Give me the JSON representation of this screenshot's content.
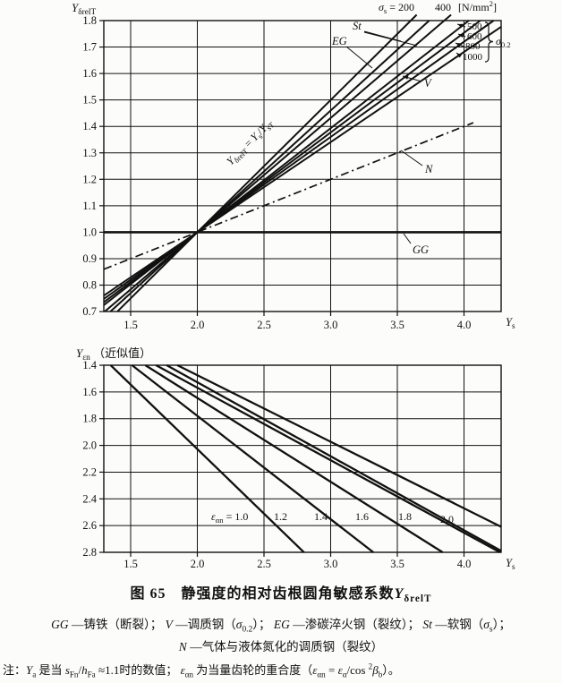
{
  "figure": {
    "number": "图 65",
    "caption": [
      {
        "t": "图 65　静强度的相对齿根圆角敏感系数"
      },
      {
        "t": "Y",
        "i": 1
      },
      {
        "t": "δrelT",
        "sub": 1
      }
    ],
    "legend_line1": [
      {
        "t": "GG",
        "i": 1
      },
      {
        "t": " —铸铁（断裂）； "
      },
      {
        "t": "V",
        "i": 1
      },
      {
        "t": " —调质钢（"
      },
      {
        "t": "σ",
        "i": 1
      },
      {
        "t": "0.2",
        "sub": 1
      },
      {
        "t": "）； "
      },
      {
        "t": "EG",
        "i": 1
      },
      {
        "t": " —渗碳淬火钢（裂纹）； "
      },
      {
        "t": "St",
        "i": 1
      },
      {
        "t": " —软钢（"
      },
      {
        "t": "σ",
        "i": 1
      },
      {
        "t": "s",
        "sub": 1
      },
      {
        "t": "）；"
      }
    ],
    "legend_line2": [
      {
        "t": "N",
        "i": 1
      },
      {
        "t": " —气体与液体氮化的调质钢（裂纹）"
      }
    ],
    "note": [
      {
        "t": "注："
      },
      {
        "t": "Y",
        "i": 1
      },
      {
        "t": "a",
        "sub": 1
      },
      {
        "t": " 是当 "
      },
      {
        "t": "s",
        "i": 1
      },
      {
        "t": "Fn",
        "sub": 1
      },
      {
        "t": "/"
      },
      {
        "t": "h",
        "i": 1
      },
      {
        "t": "Fa",
        "sub": 1
      },
      {
        "t": " ≈1.1时的数值； "
      },
      {
        "t": "ε",
        "i": 1
      },
      {
        "t": "αn",
        "sub": 1
      },
      {
        "t": " 为当量齿轮的重合度（"
      },
      {
        "t": "ε",
        "i": 1
      },
      {
        "t": "αn",
        "sub": 1
      },
      {
        "t": " = "
      },
      {
        "t": "ε",
        "i": 1
      },
      {
        "t": "α",
        "sub": 1
      },
      {
        "t": "/cos "
      },
      {
        "t": "2",
        "sup": 1
      },
      {
        "t": "β",
        "i": 1
      },
      {
        "t": "b",
        "sub": 1
      },
      {
        "t": "）。"
      }
    ]
  },
  "chart_data": [
    {
      "id": "top",
      "type": "line",
      "title": "静强度的相对齿根圆角敏感系数",
      "xlabel": "Ys",
      "ylabel": "YδrelT",
      "xlim": [
        1.3,
        4.28
      ],
      "ylim": [
        0.7,
        1.8
      ],
      "grid": true,
      "x_ticks": [
        "1.5",
        "2.0",
        "2.5",
        "3.0",
        "3.5",
        "4.0"
      ],
      "y_ticks": [
        "1.8",
        "1.7",
        "1.6",
        "1.5",
        "1.4",
        "1.3",
        "1.2",
        "1.1",
        "1.0",
        "0.9",
        "0.8",
        "0.7"
      ],
      "pivot_point": [
        2.0,
        1.0
      ],
      "series": [
        {
          "name": "St sigma_s=200 (YδrelT=Ys/YsT)",
          "points": [
            [
              1.4,
              0.7
            ],
            [
              3.645,
              1.822
            ]
          ],
          "style": "solid"
        },
        {
          "name": "EG",
          "points": [
            [
              1.348,
              0.7
            ],
            [
              3.739,
              1.8
            ]
          ],
          "style": "solid"
        },
        {
          "name": "St sigma_s=400",
          "points": [
            [
              1.306,
              0.7
            ],
            [
              3.903,
              1.822
            ]
          ],
          "style": "solid"
        },
        {
          "name": "V sigma_0.2=500",
          "points": [
            [
              1.3,
              0.725
            ],
            [
              4.036,
              1.8
            ]
          ],
          "style": "solid"
        },
        {
          "name": "V sigma_0.2=600",
          "points": [
            [
              1.3,
              0.736
            ],
            [
              4.122,
              1.8
            ]
          ],
          "style": "solid"
        },
        {
          "name": "V sigma_0.2=800",
          "points": [
            [
              1.3,
              0.748
            ],
            [
              4.222,
              1.8
            ]
          ],
          "style": "solid"
        },
        {
          "name": "V sigma_0.2=1000",
          "points": [
            [
              1.3,
              0.761
            ],
            [
              4.28,
              1.777
            ]
          ],
          "style": "solid"
        },
        {
          "name": "N",
          "points": [
            [
              1.3,
              0.86
            ],
            [
              4.07,
              1.414
            ]
          ],
          "style": "dashdot"
        },
        {
          "name": "GG",
          "points": [
            [
              1.3,
              1.0
            ],
            [
              4.28,
              1.0
            ]
          ],
          "style": "bold"
        }
      ],
      "annotations": {
        "axis_title": [
          {
            "t": "Y",
            "i": 1
          },
          {
            "t": "δrelT",
            "sub": 1
          }
        ],
        "sigma_s_200": [
          {
            "t": "σ",
            "i": 1
          },
          {
            "t": "s",
            "sub": 1
          },
          {
            "t": " = 200"
          }
        ],
        "v400": [
          {
            "t": "400"
          }
        ],
        "unit": [
          {
            "t": "[N/mm"
          },
          {
            "t": "2",
            "sup": 1
          },
          {
            "t": "]"
          }
        ],
        "st": [
          {
            "t": "St",
            "i": 1
          }
        ],
        "eg": [
          {
            "t": "EG",
            "i": 1
          }
        ],
        "v": [
          {
            "t": "V",
            "i": 1
          }
        ],
        "n": [
          {
            "t": "N",
            "i": 1
          }
        ],
        "gg": [
          {
            "t": "GG",
            "i": 1
          }
        ],
        "v500": [
          {
            "t": "500"
          }
        ],
        "v600": [
          {
            "t": "600"
          }
        ],
        "v800": [
          {
            "t": "800"
          }
        ],
        "v1000": [
          {
            "t": "1000"
          }
        ],
        "sigma02": [
          {
            "t": "σ",
            "i": 1
          },
          {
            "t": "0.2",
            "sub": 1
          }
        ],
        "formula": [
          {
            "t": "Y",
            "i": 1
          },
          {
            "t": "δrelT",
            "sub": 1
          },
          {
            "t": " = "
          },
          {
            "t": "Y",
            "i": 1
          },
          {
            "t": "s",
            "sub": 1
          },
          {
            "t": "/"
          },
          {
            "t": "Y",
            "i": 1
          },
          {
            "t": "sT",
            "sub": 1
          }
        ],
        "xlabel": [
          {
            "t": "Y",
            "i": 1
          },
          {
            "t": "s",
            "sub": 1
          }
        ]
      }
    },
    {
      "id": "bottom",
      "type": "line",
      "title": "",
      "xlabel": "Ys",
      "ylabel": "Yεn（近似值）",
      "xlim": [
        1.3,
        4.28
      ],
      "ylim": [
        1.4,
        2.8
      ],
      "y_inverted": true,
      "grid": true,
      "x_ticks": [
        "1.5",
        "2.0",
        "2.5",
        "3.0",
        "3.5",
        "4.0"
      ],
      "y_ticks": [
        "1.4",
        "1.6",
        "1.8",
        "2.0",
        "2.2",
        "2.4",
        "2.6",
        "2.8"
      ],
      "series": [
        {
          "name": "εαn=1.0",
          "points": [
            [
              1.35,
              1.4
            ],
            [
              2.8,
              2.8
            ]
          ],
          "style": "solid"
        },
        {
          "name": "εαn=1.2",
          "points": [
            [
              1.51,
              1.4
            ],
            [
              3.32,
              2.8
            ]
          ],
          "style": "solid"
        },
        {
          "name": "εαn=1.4",
          "points": [
            [
              1.61,
              1.4
            ],
            [
              3.84,
              2.8
            ]
          ],
          "style": "solid"
        },
        {
          "name": "εαn=1.6",
          "points": [
            [
              1.69,
              1.4
            ],
            [
              4.27,
              2.8
            ]
          ],
          "style": "solid"
        },
        {
          "name": "εαn=1.8",
          "points": [
            [
              1.77,
              1.4
            ],
            [
              4.28,
              2.79
            ]
          ],
          "style": "solid"
        },
        {
          "name": "εαn=2.0",
          "points": [
            [
              1.85,
              1.4
            ],
            [
              4.28,
              2.61
            ]
          ],
          "style": "solid"
        }
      ],
      "annotations": {
        "axis_title": [
          {
            "t": "Y",
            "i": 1
          },
          {
            "t": "εn",
            "sub": 1
          },
          {
            "t": " （近似值）"
          }
        ],
        "eps10": [
          {
            "t": "ε",
            "i": 1
          },
          {
            "t": "αn",
            "sub": 1
          },
          {
            "t": " = 1.0"
          }
        ],
        "eps12": [
          {
            "t": "1.2"
          }
        ],
        "eps14": [
          {
            "t": "1.4"
          }
        ],
        "eps16": [
          {
            "t": "1.6"
          }
        ],
        "eps18": [
          {
            "t": "1.8"
          }
        ],
        "eps20": [
          {
            "t": "2.0"
          }
        ],
        "xlabel": [
          {
            "t": "Y",
            "i": 1
          },
          {
            "t": "s",
            "sub": 1
          }
        ]
      }
    }
  ],
  "colors": {
    "ink": "#111111",
    "paper": "#fcfcfa"
  }
}
